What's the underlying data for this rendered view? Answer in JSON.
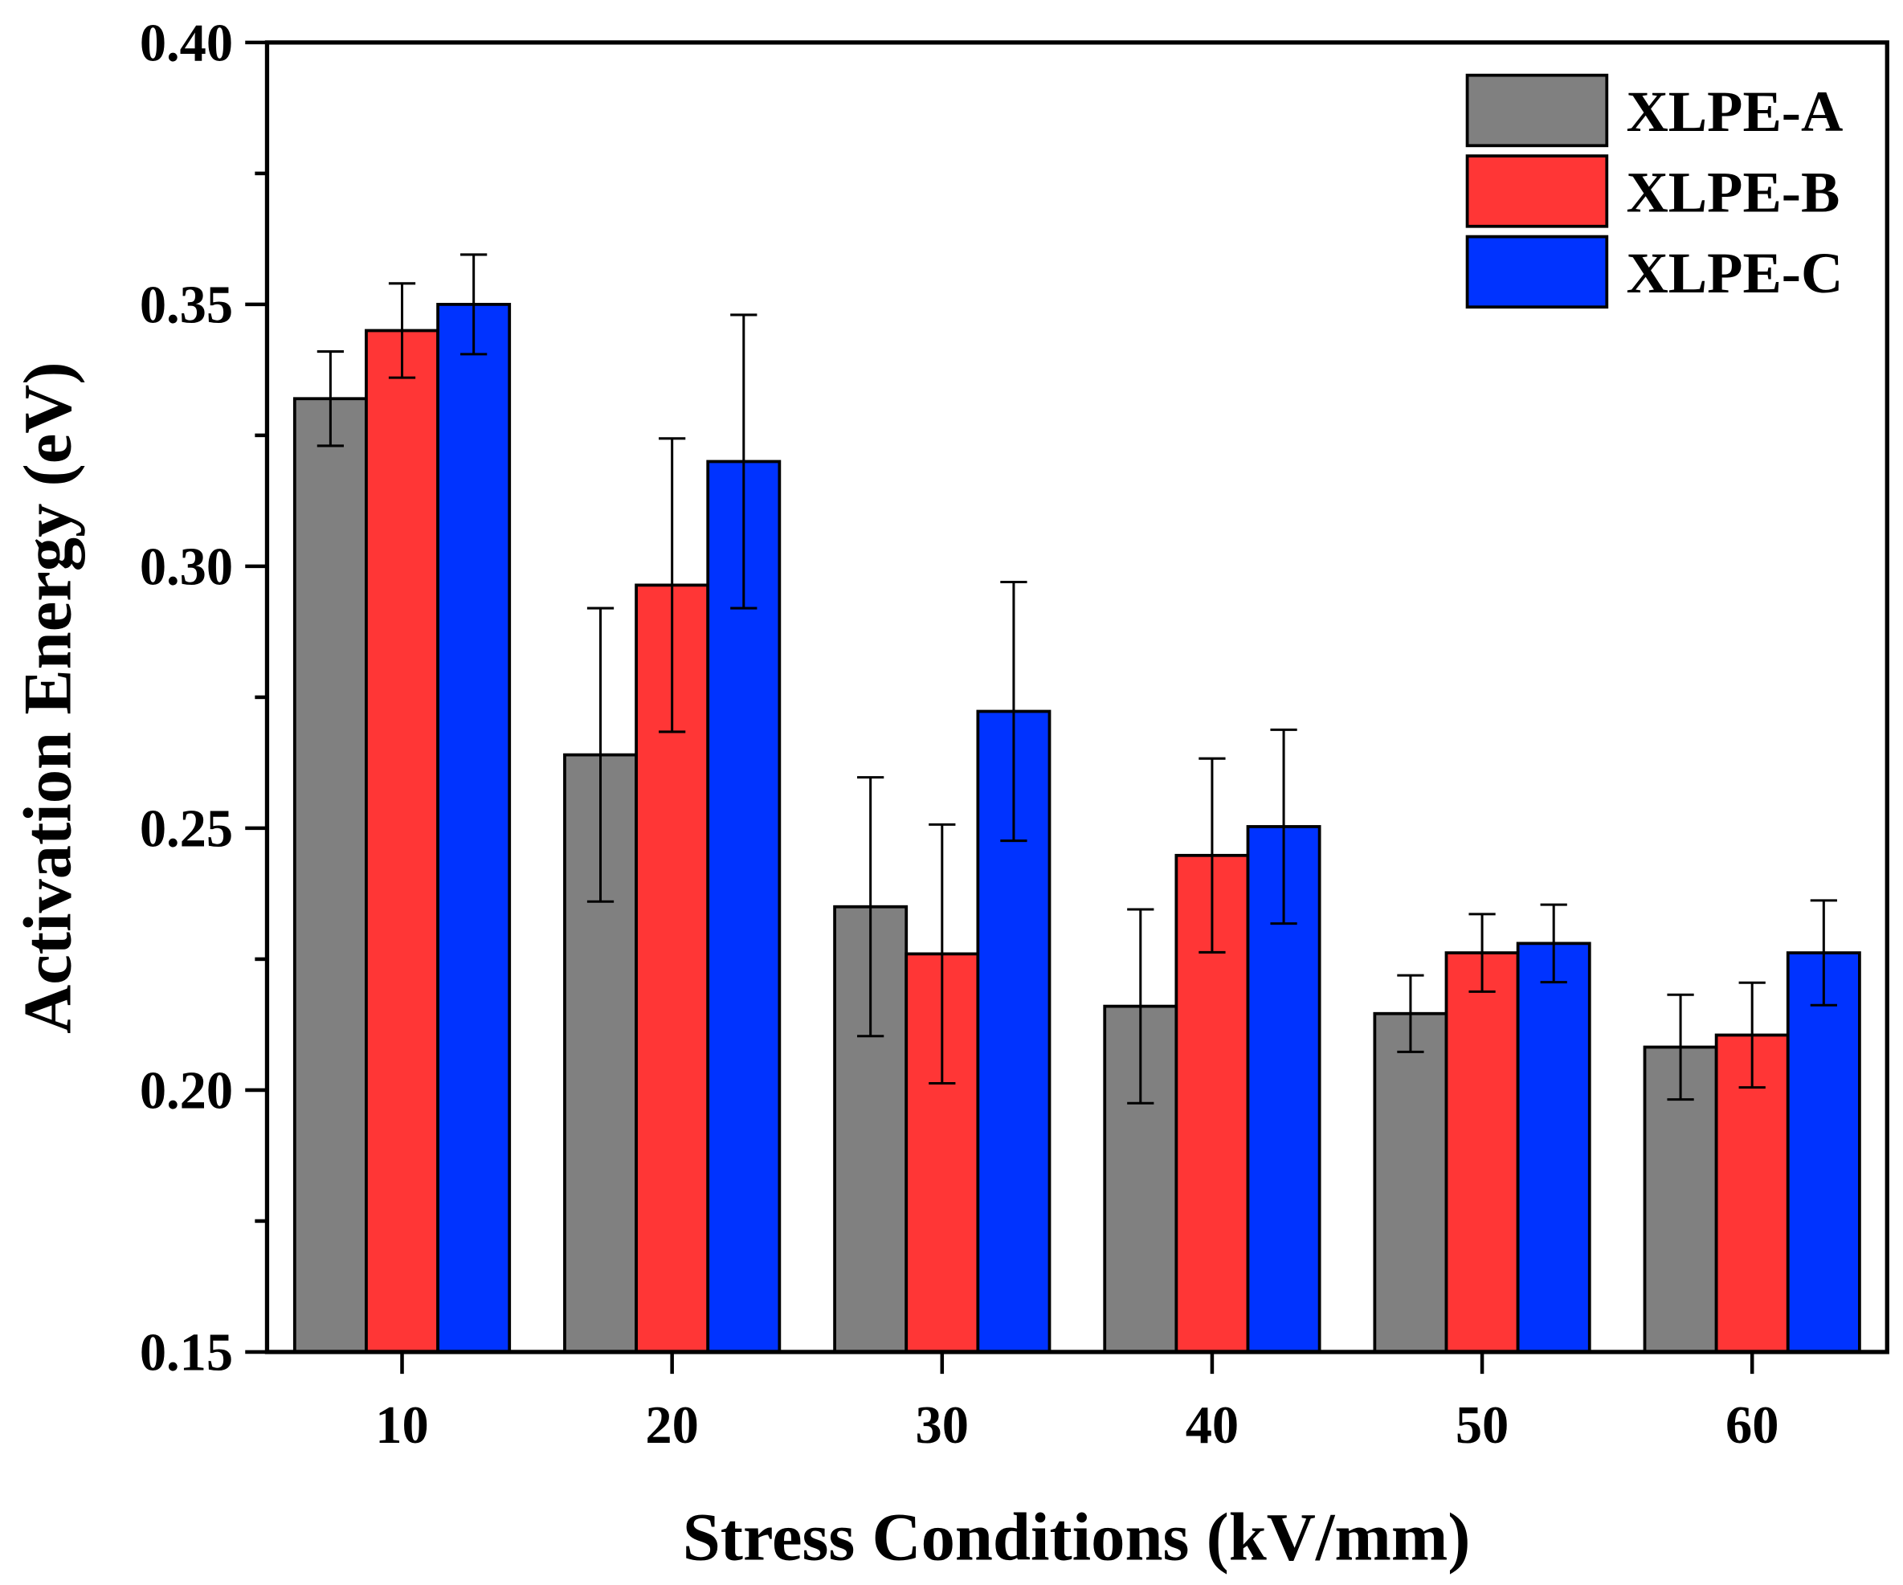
{
  "chart_data": {
    "type": "bar",
    "title": "",
    "xlabel": "Stress Conditions (kV/mm)",
    "ylabel": "Activation Energy (eV)",
    "categories": [
      "10",
      "20",
      "30",
      "40",
      "50",
      "60"
    ],
    "ylim": [
      0.15,
      0.4
    ],
    "yticks": [
      "0.15",
      "0.20",
      "0.25",
      "0.30",
      "0.35",
      "0.40"
    ],
    "grid": false,
    "legend_position": "top-right",
    "series": [
      {
        "name": "XLPE-A",
        "color": "#808080",
        "values": [
          0.332,
          0.264,
          0.235,
          0.216,
          0.2146,
          0.2082
        ],
        "errors": [
          0.009,
          0.028,
          0.0247,
          0.0185,
          0.0073,
          0.01
        ]
      },
      {
        "name": "XLPE-B",
        "color": "#ff3636",
        "values": [
          0.345,
          0.2964,
          0.226,
          0.2448,
          0.2262,
          0.2105
        ],
        "errors": [
          0.009,
          0.028,
          0.0247,
          0.0185,
          0.0074,
          0.01
        ]
      },
      {
        "name": "XLPE-C",
        "color": "#0033ff",
        "values": [
          0.35,
          0.32,
          0.2723,
          0.2503,
          0.228,
          0.2262
        ],
        "errors": [
          0.0095,
          0.028,
          0.0247,
          0.0185,
          0.0074,
          0.01
        ]
      }
    ]
  }
}
